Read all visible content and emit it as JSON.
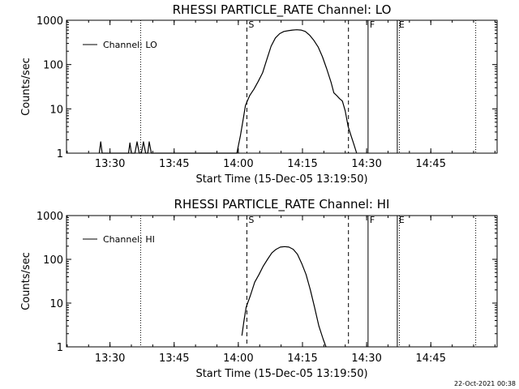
{
  "chart_data": [
    {
      "type": "line",
      "title": "RHESSI PARTICLE_RATE Channel: LO",
      "xlabel": "Start Time (15-Dec-05 13:19:50)",
      "ylabel": "Counts/sec",
      "yscale": "log",
      "ylim": [
        1,
        1000
      ],
      "xlim": [
        "13:19:50",
        "15:00:30"
      ],
      "xticks": [
        "13:30",
        "13:45",
        "14:00",
        "14:15",
        "14:30",
        "14:45"
      ],
      "yticks": [
        "1",
        "10",
        "100",
        "1000"
      ],
      "legend": "Channel: LO",
      "legend_position": "top-left",
      "markers": [
        {
          "label": "",
          "time": "13:37:10",
          "style": "dotted"
        },
        {
          "label": "S",
          "time": "14:02:00",
          "style": "dashed"
        },
        {
          "label": "",
          "time": "14:25:45",
          "style": "dashed"
        },
        {
          "label": "F",
          "time": "14:30:20",
          "style": "solid"
        },
        {
          "label": "E",
          "time": "14:37:10",
          "style": "solid"
        },
        {
          "label": "",
          "time": "14:37:40",
          "style": "dotted"
        },
        {
          "label": "",
          "time": "14:55:30",
          "style": "dotted"
        }
      ],
      "series": [
        {
          "name": "Channel: LO",
          "points": [
            [
              "13:27:30",
              1
            ],
            [
              "13:27:50",
              1.8
            ],
            [
              "13:28:10",
              1
            ],
            [
              "13:34:20",
              1
            ],
            [
              "13:34:40",
              1.7
            ],
            [
              "13:35:00",
              1
            ],
            [
              "13:35:50",
              1
            ],
            [
              "13:36:20",
              1.8
            ],
            [
              "13:36:50",
              1
            ],
            [
              "13:37:20",
              1
            ],
            [
              "13:37:50",
              1.8
            ],
            [
              "13:38:20",
              1
            ],
            [
              "13:38:50",
              1
            ],
            [
              "13:39:10",
              1.8
            ],
            [
              "13:39:40",
              1
            ],
            [
              "13:59:40",
              1
            ],
            [
              "14:00:30",
              2.5
            ],
            [
              "14:01:10",
              6
            ],
            [
              "14:01:40",
              12
            ],
            [
              "14:02:40",
              20
            ],
            [
              "14:03:40",
              28
            ],
            [
              "14:04:40",
              42
            ],
            [
              "14:05:40",
              65
            ],
            [
              "14:06:40",
              130
            ],
            [
              "14:07:40",
              260
            ],
            [
              "14:08:40",
              400
            ],
            [
              "14:09:40",
              500
            ],
            [
              "14:10:40",
              560
            ],
            [
              "14:11:40",
              580
            ],
            [
              "14:12:40",
              600
            ],
            [
              "14:13:40",
              610
            ],
            [
              "14:14:40",
              600
            ],
            [
              "14:15:40",
              560
            ],
            [
              "14:16:40",
              460
            ],
            [
              "14:17:40",
              350
            ],
            [
              "14:18:40",
              250
            ],
            [
              "14:19:40",
              150
            ],
            [
              "14:20:40",
              80
            ],
            [
              "14:21:40",
              40
            ],
            [
              "14:22:20",
              23
            ],
            [
              "14:23:00",
              20
            ],
            [
              "14:23:40",
              17
            ],
            [
              "14:24:20",
              15
            ],
            [
              "14:25:00",
              9
            ],
            [
              "14:25:40",
              4
            ],
            [
              "14:26:20",
              2.5
            ],
            [
              "14:27:00",
              1.6
            ],
            [
              "14:27:40",
              1
            ]
          ]
        }
      ]
    },
    {
      "type": "line",
      "title": "RHESSI PARTICLE_RATE Channel: HI",
      "xlabel": "Start Time (15-Dec-05 13:19:50)",
      "ylabel": "Counts/sec",
      "yscale": "log",
      "ylim": [
        1,
        1000
      ],
      "xlim": [
        "13:19:50",
        "15:00:30"
      ],
      "xticks": [
        "13:30",
        "13:45",
        "14:00",
        "14:15",
        "14:30",
        "14:45"
      ],
      "yticks": [
        "1",
        "10",
        "100",
        "1000"
      ],
      "legend": "Channel: HI",
      "legend_position": "top-left",
      "markers": [
        {
          "label": "",
          "time": "13:37:10",
          "style": "dotted"
        },
        {
          "label": "S",
          "time": "14:02:00",
          "style": "dashed"
        },
        {
          "label": "",
          "time": "14:25:45",
          "style": "dashed"
        },
        {
          "label": "F",
          "time": "14:30:20",
          "style": "solid"
        },
        {
          "label": "E",
          "time": "14:37:10",
          "style": "solid"
        },
        {
          "label": "",
          "time": "14:37:40",
          "style": "dotted"
        },
        {
          "label": "",
          "time": "14:55:30",
          "style": "dotted"
        }
      ],
      "series": [
        {
          "name": "Channel: HI",
          "points": [
            [
              "14:00:50",
              1.8
            ],
            [
              "14:01:20",
              4
            ],
            [
              "14:01:50",
              8
            ],
            [
              "14:02:50",
              15
            ],
            [
              "14:03:50",
              30
            ],
            [
              "14:04:50",
              45
            ],
            [
              "14:05:50",
              70
            ],
            [
              "14:06:50",
              100
            ],
            [
              "14:07:50",
              140
            ],
            [
              "14:08:50",
              170
            ],
            [
              "14:09:50",
              190
            ],
            [
              "14:10:50",
              195
            ],
            [
              "14:11:50",
              190
            ],
            [
              "14:12:50",
              170
            ],
            [
              "14:13:50",
              130
            ],
            [
              "14:14:50",
              80
            ],
            [
              "14:15:50",
              45
            ],
            [
              "14:16:50",
              20
            ],
            [
              "14:17:50",
              8
            ],
            [
              "14:18:50",
              3
            ],
            [
              "14:19:50",
              1.5
            ],
            [
              "14:20:30",
              1
            ]
          ]
        }
      ]
    }
  ],
  "footer": {
    "timestamp": "22-Oct-2021 00:38"
  }
}
